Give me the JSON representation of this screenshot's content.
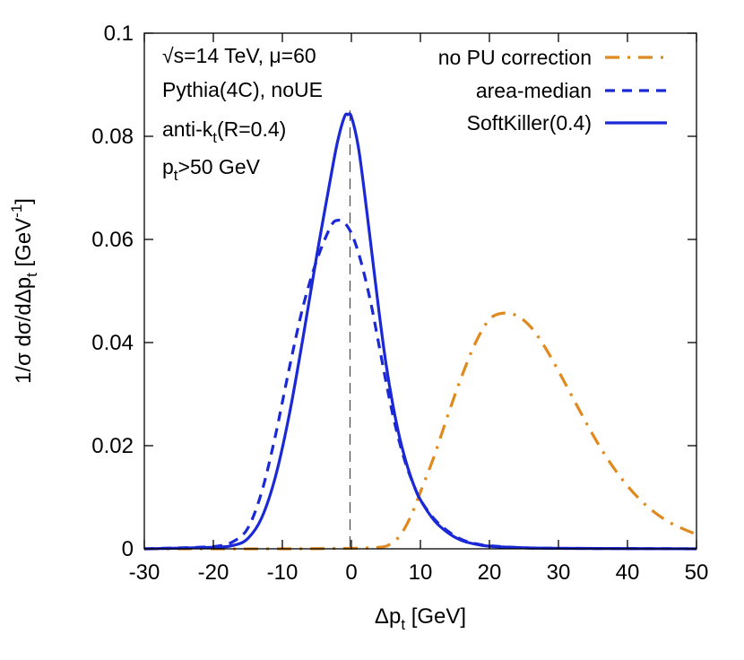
{
  "chart_data": {
    "type": "line",
    "xlabel": {
      "main": "Δp",
      "sub": "t",
      "unit": " [GeV]"
    },
    "ylabel": {
      "p1": "1/σ dσ/dΔp",
      "sub": "t",
      "p2": " [GeV",
      "sup": "-1",
      "p3": "]"
    },
    "xlim": [
      -30,
      50
    ],
    "ylim": [
      0,
      0.1
    ],
    "xticks": [
      -30,
      -20,
      -10,
      0,
      10,
      20,
      30,
      40,
      50
    ],
    "yticks": [
      0,
      0.02,
      0.04,
      0.06,
      0.08,
      0.1
    ],
    "xtick_labels": [
      "-30",
      "-20",
      "-10",
      "0",
      "10",
      "20",
      "30",
      "40",
      "50"
    ],
    "ytick_labels": [
      "0",
      "0.02",
      "0.04",
      "0.06",
      "0.08",
      "0.1"
    ],
    "vline_x": -0.2,
    "annotations": [
      {
        "parts": [
          {
            "t": "√s=14 TeV, μ=60"
          }
        ]
      },
      {
        "parts": [
          {
            "t": "Pythia(4C), noUE"
          }
        ]
      },
      {
        "parts": [
          {
            "t": "anti-k"
          },
          {
            "t": "t",
            "sub": true
          },
          {
            "t": "(R=0.4)"
          }
        ]
      },
      {
        "parts": [
          {
            "t": "p"
          },
          {
            "t": "t",
            "sub": true
          },
          {
            "t": ">50 GeV"
          }
        ]
      }
    ],
    "legend_position": "top-right",
    "series": [
      {
        "name": "no PU correction",
        "color": "#e08a1e",
        "style": "dashdot",
        "points": [
          [
            -30,
            0
          ],
          [
            -10,
            0
          ],
          [
            0,
            0.0001
          ],
          [
            4,
            0.0003
          ],
          [
            5.5,
            0.0008
          ],
          [
            7,
            0.0025
          ],
          [
            8.5,
            0.006
          ],
          [
            10,
            0.011
          ],
          [
            12,
            0.018
          ],
          [
            14,
            0.026
          ],
          [
            16,
            0.0335
          ],
          [
            18,
            0.04
          ],
          [
            20,
            0.0445
          ],
          [
            22,
            0.0457
          ],
          [
            24,
            0.0452
          ],
          [
            26,
            0.043
          ],
          [
            28,
            0.0392
          ],
          [
            30,
            0.0345
          ],
          [
            32,
            0.0295
          ],
          [
            34,
            0.0245
          ],
          [
            36,
            0.0198
          ],
          [
            38,
            0.0157
          ],
          [
            40,
            0.0122
          ],
          [
            42,
            0.0093
          ],
          [
            44,
            0.007
          ],
          [
            46,
            0.0052
          ],
          [
            48,
            0.0039
          ],
          [
            50,
            0.0028
          ]
        ]
      },
      {
        "name": "area-median",
        "color": "#1a28d6",
        "style": "dashed",
        "points": [
          [
            -30,
            0
          ],
          [
            -22,
            0.0003
          ],
          [
            -19,
            0.0006
          ],
          [
            -17,
            0.0015
          ],
          [
            -15,
            0.004
          ],
          [
            -13,
            0.011
          ],
          [
            -11,
            0.022
          ],
          [
            -9,
            0.035
          ],
          [
            -7,
            0.047
          ],
          [
            -5,
            0.056
          ],
          [
            -3,
            0.0625
          ],
          [
            -2,
            0.0637
          ],
          [
            -1,
            0.0632
          ],
          [
            0,
            0.0612
          ],
          [
            1,
            0.0575
          ],
          [
            2,
            0.0525
          ],
          [
            3,
            0.0465
          ],
          [
            4,
            0.0395
          ],
          [
            5,
            0.0325
          ],
          [
            6,
            0.026
          ],
          [
            7,
            0.0205
          ],
          [
            8,
            0.016
          ],
          [
            9,
            0.0125
          ],
          [
            10,
            0.0095
          ],
          [
            12,
            0.0058
          ],
          [
            14,
            0.0034
          ],
          [
            16,
            0.0018
          ],
          [
            18,
            0.001
          ],
          [
            20,
            0.0006
          ],
          [
            25,
            0.0002
          ],
          [
            30,
            0.0001
          ],
          [
            50,
            0
          ]
        ]
      },
      {
        "name": "SoftKiller(0.4)",
        "color": "#1a28d6",
        "style": "solid",
        "points": [
          [
            -30,
            0
          ],
          [
            -20,
            0.0003
          ],
          [
            -17,
            0.0007
          ],
          [
            -15,
            0.002
          ],
          [
            -13,
            0.006
          ],
          [
            -11,
            0.014
          ],
          [
            -9,
            0.026
          ],
          [
            -7,
            0.041
          ],
          [
            -5,
            0.057
          ],
          [
            -3,
            0.072
          ],
          [
            -2,
            0.079
          ],
          [
            -1,
            0.0838
          ],
          [
            -0.5,
            0.0842
          ],
          [
            0,
            0.0838
          ],
          [
            1,
            0.078
          ],
          [
            2,
            0.068
          ],
          [
            3,
            0.057
          ],
          [
            4,
            0.046
          ],
          [
            5,
            0.036
          ],
          [
            6,
            0.028
          ],
          [
            7,
            0.0215
          ],
          [
            8,
            0.0165
          ],
          [
            9,
            0.0125
          ],
          [
            10,
            0.0095
          ],
          [
            12,
            0.0055
          ],
          [
            14,
            0.0031
          ],
          [
            16,
            0.0016
          ],
          [
            18,
            0.0009
          ],
          [
            20,
            0.0005
          ],
          [
            25,
            0.0002
          ],
          [
            30,
            0.0001
          ],
          [
            50,
            0
          ]
        ]
      }
    ]
  }
}
